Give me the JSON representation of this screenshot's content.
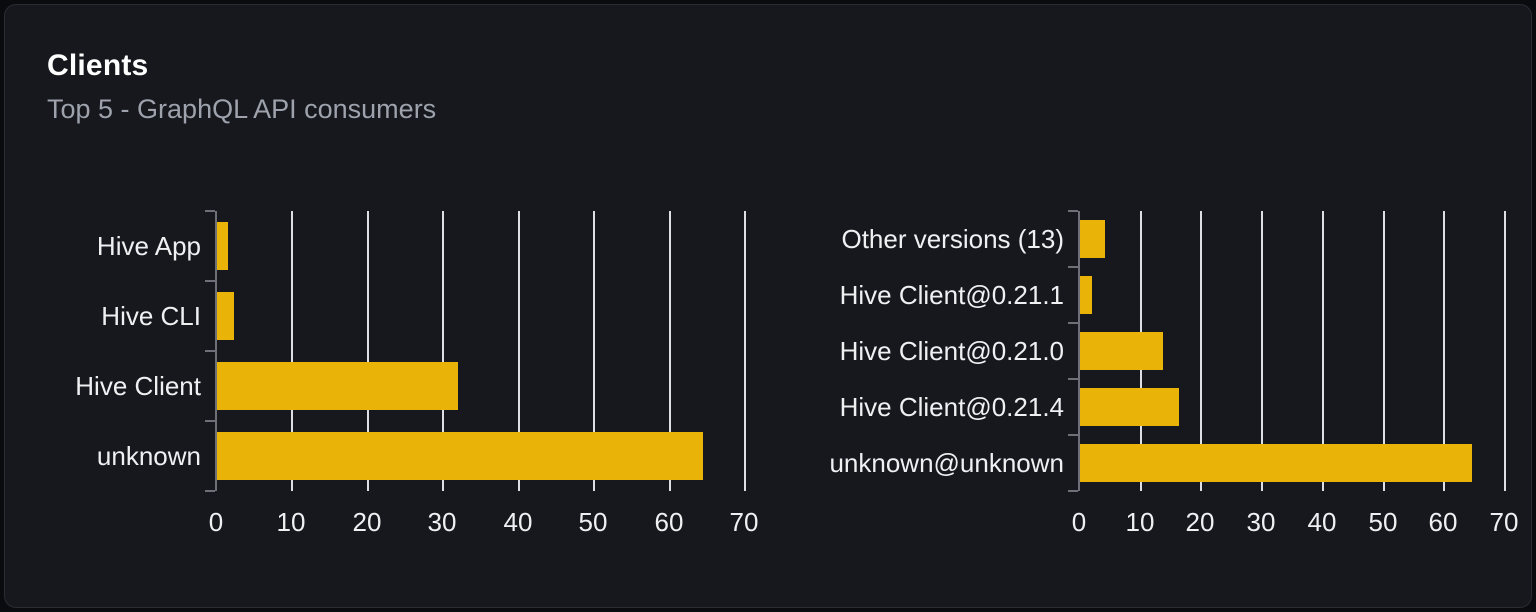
{
  "header": {
    "title": "Clients",
    "subtitle": "Top 5 - GraphQL API consumers"
  },
  "colors": {
    "page_background": "#0a0b0e",
    "card_background": "#16181d",
    "card_border": "#282c34",
    "bar_gold": "#eab308",
    "gridline": "#dcdfe6",
    "axis": "#6e7079",
    "title_text": "#ffffff",
    "subtitle_text": "#9da2ac",
    "axis_label_text": "#eef0f2"
  },
  "chart_data": [
    {
      "type": "bar",
      "orientation": "horizontal",
      "name": "clients-by-name",
      "categories_top_to_bottom": [
        "Hive App",
        "Hive CLI",
        "Hive Client",
        "unknown"
      ],
      "values": [
        1.4,
        2.2,
        32,
        64.4
      ],
      "xlim": [
        0,
        70
      ],
      "x_ticks": [
        0,
        10,
        20,
        30,
        40,
        50,
        60,
        70
      ],
      "grid": true,
      "legend": "none",
      "bar_color": "#eab308"
    },
    {
      "type": "bar",
      "orientation": "horizontal",
      "name": "clients-by-version",
      "categories_top_to_bottom": [
        "Other versions (13)",
        "Hive Client@0.21.1",
        "Hive Client@0.21.0",
        "Hive Client@0.21.4",
        "unknown@unknown"
      ],
      "values": [
        4.1,
        1.9,
        13.7,
        16.3,
        64.5
      ],
      "xlim": [
        0,
        70
      ],
      "x_ticks": [
        0,
        10,
        20,
        30,
        40,
        50,
        60,
        70
      ],
      "grid": true,
      "legend": "none",
      "bar_color": "#eab308"
    }
  ]
}
